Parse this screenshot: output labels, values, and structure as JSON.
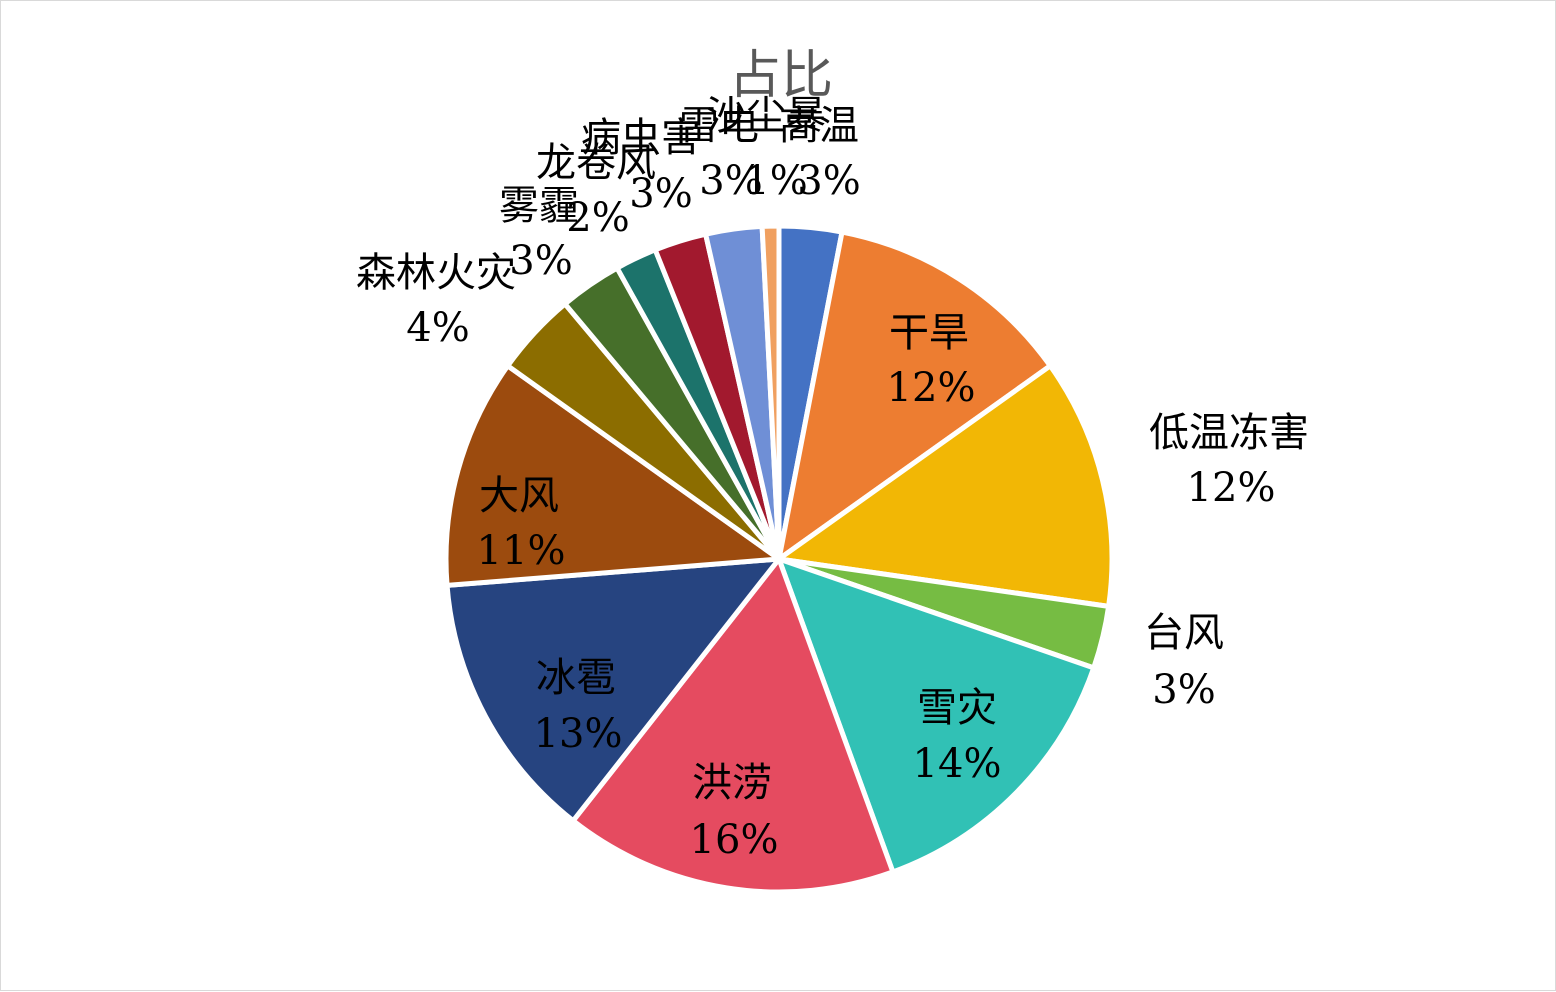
{
  "chart_data": {
    "type": "pie",
    "title": "占比",
    "start_angle_deg": 0,
    "direction": "clockwise",
    "slices": [
      {
        "name": "高温",
        "percent": 3,
        "label": "3%",
        "color": "#4472c4"
      },
      {
        "name": "干旱",
        "percent": 12,
        "label": "12%",
        "color": "#ed7d31"
      },
      {
        "name": "低温冻害",
        "percent": 12,
        "label": "12%",
        "color": "#f2b705"
      },
      {
        "name": "台风",
        "percent": 3,
        "label": "3%",
        "color": "#76bc43"
      },
      {
        "name": "雪灾",
        "percent": 14,
        "label": "14%",
        "color": "#31c1b5"
      },
      {
        "name": "洪涝",
        "percent": 16,
        "label": "16%",
        "color": "#e54b60"
      },
      {
        "name": "冰雹",
        "percent": 13,
        "label": "13%",
        "color": "#264480"
      },
      {
        "name": "大风",
        "percent": 11,
        "label": "11%",
        "color": "#9c4b0e"
      },
      {
        "name": "森林火灾",
        "percent": 4,
        "label": "4%",
        "color": "#8c6d00"
      },
      {
        "name": "雾霾",
        "percent": 3,
        "label": "3%",
        "color": "#466f2a"
      },
      {
        "name": "龙卷风",
        "percent": 2,
        "label": "2%",
        "color": "#1c736b"
      },
      {
        "name": "病虫害",
        "percent": 2.5,
        "label": "3%",
        "color": "#a2192e"
      },
      {
        "name": "雷电",
        "percent": 2.7,
        "label": "3%",
        "color": "#6f8fd6"
      },
      {
        "name": "沙尘暴",
        "percent": 0.8,
        "label": "1%",
        "color": "#f0a060"
      }
    ]
  }
}
